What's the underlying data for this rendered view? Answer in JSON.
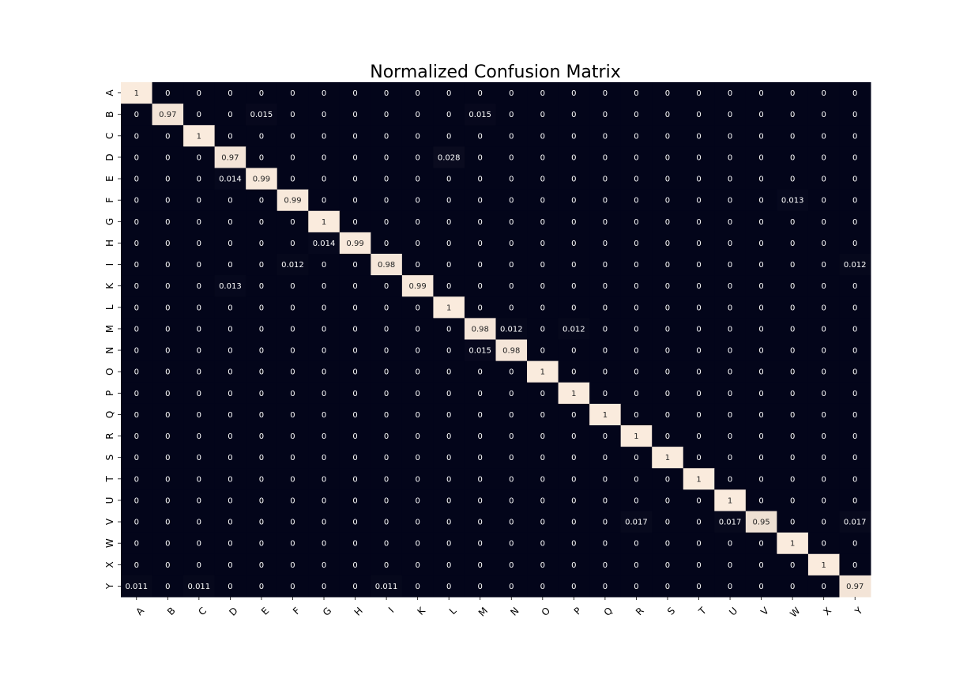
{
  "chart_data": {
    "type": "heatmap",
    "title": "Normalized Confusion Matrix",
    "xlabel": "",
    "ylabel": "",
    "x_labels": [
      "A",
      "B",
      "C",
      "D",
      "E",
      "F",
      "G",
      "H",
      "I",
      "K",
      "L",
      "M",
      "N",
      "O",
      "P",
      "Q",
      "R",
      "S",
      "T",
      "U",
      "V",
      "W",
      "X",
      "Y"
    ],
    "y_labels": [
      "A",
      "B",
      "C",
      "D",
      "E",
      "F",
      "G",
      "H",
      "I",
      "K",
      "L",
      "M",
      "N",
      "O",
      "P",
      "Q",
      "R",
      "S",
      "T",
      "U",
      "V",
      "W",
      "X",
      "Y"
    ],
    "value_range": [
      0,
      1
    ],
    "colors": {
      "low": "#03051a",
      "high": "#faebdd",
      "text_on_low": "#ffffff",
      "text_on_high": "#262626"
    },
    "matrix": [
      [
        "1",
        "0",
        "0",
        "0",
        "0",
        "0",
        "0",
        "0",
        "0",
        "0",
        "0",
        "0",
        "0",
        "0",
        "0",
        "0",
        "0",
        "0",
        "0",
        "0",
        "0",
        "0",
        "0",
        "0"
      ],
      [
        "0",
        "0.97",
        "0",
        "0",
        "0.015",
        "0",
        "0",
        "0",
        "0",
        "0",
        "0",
        "0.015",
        "0",
        "0",
        "0",
        "0",
        "0",
        "0",
        "0",
        "0",
        "0",
        "0",
        "0",
        "0"
      ],
      [
        "0",
        "0",
        "1",
        "0",
        "0",
        "0",
        "0",
        "0",
        "0",
        "0",
        "0",
        "0",
        "0",
        "0",
        "0",
        "0",
        "0",
        "0",
        "0",
        "0",
        "0",
        "0",
        "0",
        "0"
      ],
      [
        "0",
        "0",
        "0",
        "0.97",
        "0",
        "0",
        "0",
        "0",
        "0",
        "0",
        "0.028",
        "0",
        "0",
        "0",
        "0",
        "0",
        "0",
        "0",
        "0",
        "0",
        "0",
        "0",
        "0",
        "0"
      ],
      [
        "0",
        "0",
        "0",
        "0.014",
        "0.99",
        "0",
        "0",
        "0",
        "0",
        "0",
        "0",
        "0",
        "0",
        "0",
        "0",
        "0",
        "0",
        "0",
        "0",
        "0",
        "0",
        "0",
        "0",
        "0"
      ],
      [
        "0",
        "0",
        "0",
        "0",
        "0",
        "0.99",
        "0",
        "0",
        "0",
        "0",
        "0",
        "0",
        "0",
        "0",
        "0",
        "0",
        "0",
        "0",
        "0",
        "0",
        "0",
        "0.013",
        "0",
        "0"
      ],
      [
        "0",
        "0",
        "0",
        "0",
        "0",
        "0",
        "1",
        "0",
        "0",
        "0",
        "0",
        "0",
        "0",
        "0",
        "0",
        "0",
        "0",
        "0",
        "0",
        "0",
        "0",
        "0",
        "0",
        "0"
      ],
      [
        "0",
        "0",
        "0",
        "0",
        "0",
        "0",
        "0.014",
        "0.99",
        "0",
        "0",
        "0",
        "0",
        "0",
        "0",
        "0",
        "0",
        "0",
        "0",
        "0",
        "0",
        "0",
        "0",
        "0",
        "0"
      ],
      [
        "0",
        "0",
        "0",
        "0",
        "0",
        "0.012",
        "0",
        "0",
        "0.98",
        "0",
        "0",
        "0",
        "0",
        "0",
        "0",
        "0",
        "0",
        "0",
        "0",
        "0",
        "0",
        "0",
        "0",
        "0.012"
      ],
      [
        "0",
        "0",
        "0",
        "0.013",
        "0",
        "0",
        "0",
        "0",
        "0",
        "0.99",
        "0",
        "0",
        "0",
        "0",
        "0",
        "0",
        "0",
        "0",
        "0",
        "0",
        "0",
        "0",
        "0",
        "0"
      ],
      [
        "0",
        "0",
        "0",
        "0",
        "0",
        "0",
        "0",
        "0",
        "0",
        "0",
        "1",
        "0",
        "0",
        "0",
        "0",
        "0",
        "0",
        "0",
        "0",
        "0",
        "0",
        "0",
        "0",
        "0"
      ],
      [
        "0",
        "0",
        "0",
        "0",
        "0",
        "0",
        "0",
        "0",
        "0",
        "0",
        "0",
        "0.98",
        "0.012",
        "0",
        "0.012",
        "0",
        "0",
        "0",
        "0",
        "0",
        "0",
        "0",
        "0",
        "0"
      ],
      [
        "0",
        "0",
        "0",
        "0",
        "0",
        "0",
        "0",
        "0",
        "0",
        "0",
        "0",
        "0.015",
        "0.98",
        "0",
        "0",
        "0",
        "0",
        "0",
        "0",
        "0",
        "0",
        "0",
        "0",
        "0"
      ],
      [
        "0",
        "0",
        "0",
        "0",
        "0",
        "0",
        "0",
        "0",
        "0",
        "0",
        "0",
        "0",
        "0",
        "1",
        "0",
        "0",
        "0",
        "0",
        "0",
        "0",
        "0",
        "0",
        "0",
        "0"
      ],
      [
        "0",
        "0",
        "0",
        "0",
        "0",
        "0",
        "0",
        "0",
        "0",
        "0",
        "0",
        "0",
        "0",
        "0",
        "1",
        "0",
        "0",
        "0",
        "0",
        "0",
        "0",
        "0",
        "0",
        "0"
      ],
      [
        "0",
        "0",
        "0",
        "0",
        "0",
        "0",
        "0",
        "0",
        "0",
        "0",
        "0",
        "0",
        "0",
        "0",
        "0",
        "1",
        "0",
        "0",
        "0",
        "0",
        "0",
        "0",
        "0",
        "0"
      ],
      [
        "0",
        "0",
        "0",
        "0",
        "0",
        "0",
        "0",
        "0",
        "0",
        "0",
        "0",
        "0",
        "0",
        "0",
        "0",
        "0",
        "1",
        "0",
        "0",
        "0",
        "0",
        "0",
        "0",
        "0"
      ],
      [
        "0",
        "0",
        "0",
        "0",
        "0",
        "0",
        "0",
        "0",
        "0",
        "0",
        "0",
        "0",
        "0",
        "0",
        "0",
        "0",
        "0",
        "1",
        "0",
        "0",
        "0",
        "0",
        "0",
        "0"
      ],
      [
        "0",
        "0",
        "0",
        "0",
        "0",
        "0",
        "0",
        "0",
        "0",
        "0",
        "0",
        "0",
        "0",
        "0",
        "0",
        "0",
        "0",
        "0",
        "1",
        "0",
        "0",
        "0",
        "0",
        "0"
      ],
      [
        "0",
        "0",
        "0",
        "0",
        "0",
        "0",
        "0",
        "0",
        "0",
        "0",
        "0",
        "0",
        "0",
        "0",
        "0",
        "0",
        "0",
        "0",
        "0",
        "1",
        "0",
        "0",
        "0",
        "0"
      ],
      [
        "0",
        "0",
        "0",
        "0",
        "0",
        "0",
        "0",
        "0",
        "0",
        "0",
        "0",
        "0",
        "0",
        "0",
        "0",
        "0",
        "0.017",
        "0",
        "0",
        "0.017",
        "0.95",
        "0",
        "0",
        "0.017"
      ],
      [
        "0",
        "0",
        "0",
        "0",
        "0",
        "0",
        "0",
        "0",
        "0",
        "0",
        "0",
        "0",
        "0",
        "0",
        "0",
        "0",
        "0",
        "0",
        "0",
        "0",
        "0",
        "1",
        "0",
        "0"
      ],
      [
        "0",
        "0",
        "0",
        "0",
        "0",
        "0",
        "0",
        "0",
        "0",
        "0",
        "0",
        "0",
        "0",
        "0",
        "0",
        "0",
        "0",
        "0",
        "0",
        "0",
        "0",
        "0",
        "1",
        "0"
      ],
      [
        "0.011",
        "0",
        "0.011",
        "0",
        "0",
        "0",
        "0",
        "0",
        "0.011",
        "0",
        "0",
        "0",
        "0",
        "0",
        "0",
        "0",
        "0",
        "0",
        "0",
        "0",
        "0",
        "0",
        "0",
        "0.97"
      ]
    ]
  }
}
